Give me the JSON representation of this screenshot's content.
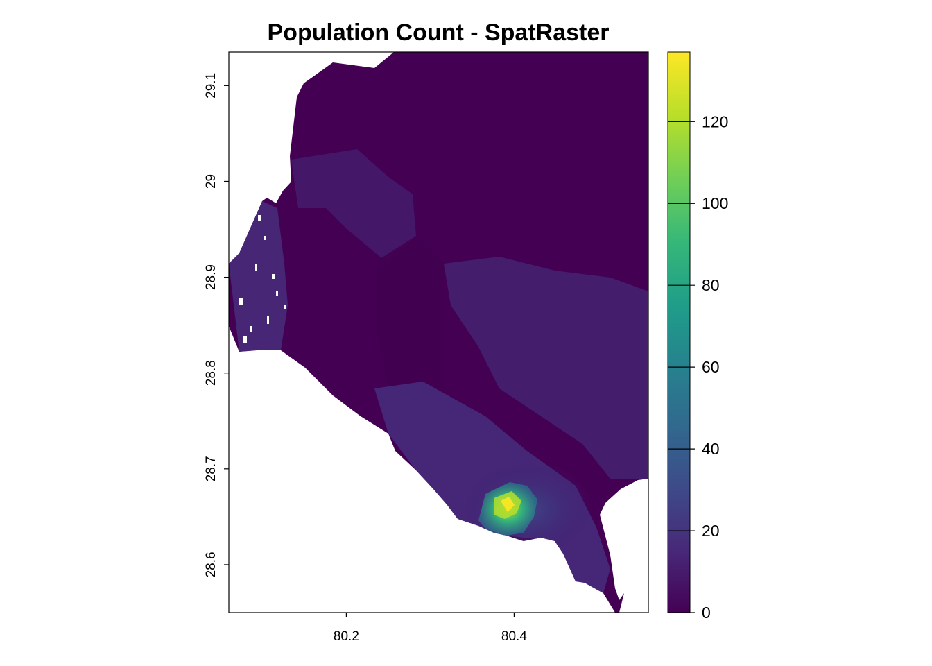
{
  "title": "Population Count - SpatRaster",
  "map": {
    "x_ticks": [
      "80.2",
      "80.4"
    ],
    "y_ticks": [
      "29.1",
      "29",
      "28.9",
      "28.8",
      "28.7",
      "28.6"
    ],
    "x_range": [
      80.06,
      80.56
    ],
    "y_range": [
      28.55,
      29.135
    ],
    "background_color": "#440154",
    "hotspot_colors": [
      "#3b1f72",
      "#3e4a89",
      "#31688e",
      "#26828e",
      "#35b779",
      "#6ece58",
      "#b5de2b",
      "#fde725"
    ]
  },
  "legend": {
    "labels": [
      "0",
      "20",
      "40",
      "60",
      "80",
      "100",
      "120"
    ],
    "min": 0,
    "max": 137,
    "palette": "viridis",
    "colors": [
      "#440154",
      "#482878",
      "#3e4a89",
      "#31688e",
      "#26828e",
      "#1f9e89",
      "#35b779",
      "#6ece58",
      "#b5de2b",
      "#fde725"
    ]
  }
}
